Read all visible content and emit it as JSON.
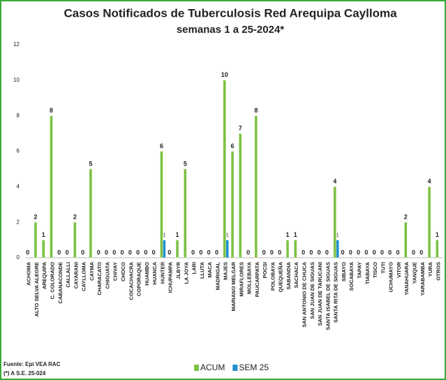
{
  "chart_data": {
    "type": "bar",
    "title": "Casos Notificados de Tuberculosis Red Arequipa Caylloma",
    "subtitle": "semanas 1 a 25-2024*",
    "categories": [
      "ACHOMA",
      "ALTO SELVA ALEGRE",
      "AREQUIPA",
      "C. COLORADO",
      "CABANACONDE",
      "CALLALLI",
      "CAYARANI",
      "CAYLLOMA",
      "CAYMA",
      "CHARACATO",
      "CHIGUATA",
      "CHIVAY",
      "CHOCO",
      "COCACHACRA",
      "COPORAQUE",
      "HUAMBO",
      "HUANCA",
      "HUNTER",
      "ICHUPAMPA",
      "JLBYR",
      "LA JOYA",
      "LARI",
      "LLUTA",
      "MACA",
      "MADRIGAL",
      "MAJES",
      "MARIANO MELGAR",
      "MIRAFLORES",
      "MOLLEBAYA",
      "PAUCARPATA",
      "POCSI",
      "POLOBAYA",
      "QUEQUEÑA",
      "SABANDIA",
      "SACHACA",
      "SAN ANTONIO DE CHUCA",
      "SAN JUAN DE SIGUAS",
      "SAN JUAN DE TARUCANI",
      "SANTA ISABEL DE SIGUAS",
      "SANTA RITA DE SIGUAS",
      "SIBAYO",
      "SOCABAYA",
      "TAPAY",
      "TIABAYA",
      "TISCO",
      "TUTI",
      "UCHUMAYO",
      "VITOR",
      "YANAHUARA",
      "YANQUE",
      "YARABAMBA",
      "YURA",
      "OTROS"
    ],
    "series": [
      {
        "name": "ACUM",
        "color": "#7cc142",
        "values": [
          0,
          2,
          1,
          8,
          0,
          0,
          2,
          0,
          5,
          0,
          0,
          0,
          0,
          0,
          0,
          0,
          0,
          6,
          0,
          1,
          5,
          0,
          0,
          0,
          0,
          10,
          6,
          7,
          0,
          8,
          0,
          0,
          0,
          1,
          1,
          0,
          0,
          0,
          0,
          4,
          0,
          0,
          0,
          0,
          0,
          0,
          0,
          0,
          2,
          0,
          0,
          4,
          1
        ]
      },
      {
        "name": "SEM 25",
        "color": "#1f8fd0",
        "values": [
          0,
          0,
          0,
          0,
          0,
          0,
          0,
          0,
          0,
          0,
          0,
          0,
          0,
          0,
          0,
          0,
          0,
          1,
          0,
          0,
          0,
          0,
          0,
          0,
          0,
          1,
          0,
          0,
          0,
          0,
          0,
          0,
          0,
          0,
          0,
          0,
          0,
          0,
          0,
          1,
          0,
          0,
          0,
          0,
          0,
          0,
          0,
          0,
          0,
          0,
          0,
          0,
          0
        ]
      }
    ],
    "ylim": [
      0,
      12
    ],
    "yticks": [
      0,
      2,
      4,
      6,
      8,
      10,
      12
    ],
    "grid": false,
    "legend": "bottom",
    "source": "Fuente: Epi VEA RAC",
    "note": "(*) A S.E. 25-024"
  }
}
